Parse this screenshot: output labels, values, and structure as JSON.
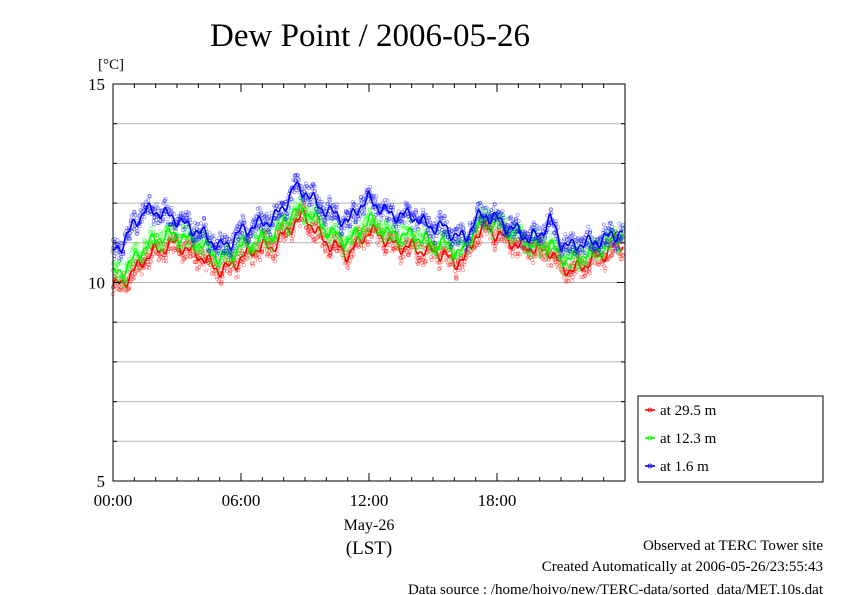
{
  "page": {
    "title": "Dew Point / 2006-05-26",
    "unit_label": "[°C]",
    "date_label": "May-26",
    "timezone_label": "(LST)",
    "footer": {
      "site": "Observed at TERC Tower site",
      "created": "Created Automatically at 2006-05-26/23:55:43",
      "source": "Data source : /home/hoivo/new/TERC-data/sorted_data/MET.10s.dat"
    }
  },
  "chart_data": {
    "type": "line",
    "title": "Dew Point / 2006-05-26",
    "xlabel": "(LST)",
    "ylabel": "[°C]",
    "xlim": [
      0,
      24
    ],
    "ylim": [
      5,
      15
    ],
    "x_ticks": [
      {
        "value": 0,
        "label": "00:00"
      },
      {
        "value": 6,
        "label": "06:00"
      },
      {
        "value": 12,
        "label": "12:00"
      },
      {
        "value": 18,
        "label": "18:00"
      }
    ],
    "y_ticks": [
      {
        "value": 5,
        "label": "5"
      },
      {
        "value": 10,
        "label": "10"
      },
      {
        "value": 15,
        "label": "15"
      }
    ],
    "grid": true,
    "legend_position": "right",
    "x": [
      0,
      0.5,
      1,
      1.5,
      2,
      2.5,
      3,
      3.5,
      4,
      4.5,
      5,
      5.5,
      6,
      6.5,
      7,
      7.5,
      8,
      8.5,
      9,
      9.5,
      10,
      10.5,
      11,
      11.5,
      12,
      12.5,
      13,
      13.5,
      14,
      14.5,
      15,
      15.5,
      16,
      16.5,
      17,
      17.5,
      18,
      18.5,
      19,
      19.5,
      20,
      20.5,
      21,
      21.5,
      22,
      22.5,
      23,
      23.5,
      23.9
    ],
    "series": [
      {
        "name": "at 29.5 m",
        "color": "#ff0000",
        "values": [
          9.9,
          10.0,
          10.3,
          10.6,
          10.8,
          10.9,
          11.0,
          10.8,
          10.7,
          10.5,
          10.3,
          10.4,
          10.6,
          10.8,
          10.9,
          10.9,
          11.2,
          11.5,
          11.7,
          11.3,
          11.0,
          10.9,
          10.7,
          11.0,
          11.3,
          11.2,
          11.0,
          10.9,
          10.9,
          10.8,
          10.8,
          10.7,
          10.5,
          10.6,
          11.2,
          11.4,
          11.2,
          11.1,
          10.9,
          10.9,
          10.8,
          10.8,
          10.4,
          10.3,
          10.4,
          10.6,
          10.7,
          10.9,
          11.0
        ]
      },
      {
        "name": "at 12.3 m",
        "color": "#00ff00",
        "values": [
          10.2,
          10.3,
          10.6,
          10.9,
          11.1,
          11.2,
          11.2,
          11.1,
          11.0,
          10.8,
          10.6,
          10.7,
          10.9,
          11.0,
          11.1,
          11.2,
          11.5,
          11.8,
          11.8,
          11.6,
          11.3,
          11.2,
          11.0,
          11.3,
          11.6,
          11.4,
          11.2,
          11.2,
          11.2,
          11.1,
          11.0,
          11.0,
          10.8,
          10.8,
          11.4,
          11.6,
          11.5,
          11.3,
          11.2,
          11.0,
          10.9,
          11.0,
          10.6,
          10.6,
          10.7,
          10.8,
          10.9,
          11.1,
          11.2
        ]
      },
      {
        "name": "at 1.6 m",
        "color": "#0000ff",
        "values": [
          10.8,
          11.0,
          11.5,
          11.8,
          11.8,
          11.7,
          11.6,
          11.4,
          11.3,
          11.1,
          10.9,
          11.0,
          11.3,
          11.4,
          11.5,
          11.6,
          11.9,
          12.4,
          12.3,
          12.0,
          11.8,
          11.7,
          11.5,
          11.9,
          12.1,
          11.9,
          11.7,
          11.7,
          11.7,
          11.5,
          11.4,
          11.4,
          11.2,
          11.1,
          11.6,
          11.7,
          11.6,
          11.4,
          11.3,
          11.1,
          11.2,
          11.6,
          11.0,
          10.9,
          11.0,
          11.0,
          11.1,
          11.2,
          11.3
        ]
      }
    ]
  }
}
